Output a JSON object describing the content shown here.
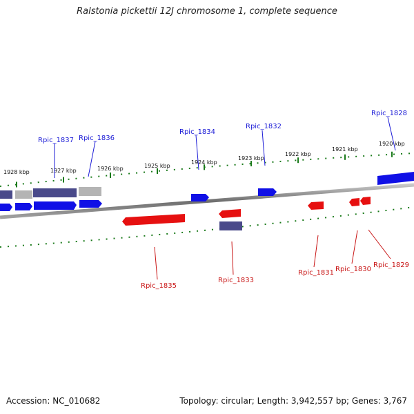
{
  "title": "Ralstonia pickettii 12J chromosome 1, complete sequence",
  "accession_text": "Accession: NC_010682",
  "summary_text": "Topology: circular; Length: 3,942,557 bp; Genes: 3,767",
  "colors": {
    "forward_gene": "#1010e6",
    "reverse_gene": "#e61010",
    "rna_gene": "#4a4a8a",
    "pseudo_gene": "#b4b4b4",
    "backbone": "#8a8a8a",
    "tick": "#1a7a1a",
    "top_label": "#1a1ad6",
    "bottom_label": "#c81414"
  },
  "scale_labels": [
    "1928 kbp",
    "1927 kbp",
    "1926 kbp",
    "1925 kbp",
    "1924 kbp",
    "1923 kbp",
    "1922 kbp",
    "1921 kbp",
    "1920 kbp"
  ],
  "gene_labels_top": [
    "Rpic_1837",
    "Rpic_1836",
    "Rpic_1834",
    "Rpic_1832",
    "Rpic_1828"
  ],
  "gene_labels_bottom": [
    "Rpic_1835",
    "Rpic_1833",
    "Rpic_1831",
    "Rpic_1830",
    "Rpic_1829"
  ]
}
